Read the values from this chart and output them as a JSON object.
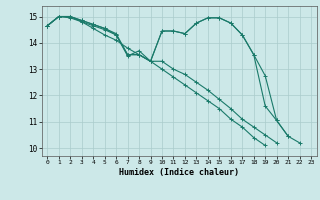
{
  "xlabel": "Humidex (Indice chaleur)",
  "xlim": [
    -0.5,
    23.5
  ],
  "ylim": [
    9.7,
    15.4
  ],
  "yticks": [
    10,
    11,
    12,
    13,
    14,
    15
  ],
  "xticks": [
    0,
    1,
    2,
    3,
    4,
    5,
    6,
    7,
    8,
    9,
    10,
    11,
    12,
    13,
    14,
    15,
    16,
    17,
    18,
    19,
    20,
    21,
    22,
    23
  ],
  "bg_color": "#cce8e8",
  "grid_color_major": "#aacccc",
  "grid_color_minor": "#bbdddd",
  "line_color": "#1a7a6a",
  "lines": [
    [
      14.65,
      15.0,
      15.0,
      14.85,
      14.7,
      14.55,
      14.35,
      13.55,
      13.55,
      13.3,
      14.45,
      14.45,
      14.35,
      14.75,
      14.95,
      14.95,
      14.75,
      14.3,
      13.55,
      11.6,
      11.05,
      10.45,
      10.2,
      null
    ],
    [
      14.65,
      15.0,
      15.0,
      14.85,
      14.7,
      14.55,
      14.3,
      13.5,
      13.7,
      13.3,
      14.45,
      14.45,
      14.35,
      14.75,
      14.95,
      14.95,
      14.75,
      14.3,
      13.55,
      12.75,
      11.05,
      10.45,
      null,
      null
    ],
    [
      14.65,
      15.0,
      15.0,
      14.8,
      14.65,
      14.5,
      14.3,
      13.55,
      13.55,
      13.3,
      13.3,
      13.0,
      12.8,
      12.5,
      12.2,
      11.85,
      11.5,
      11.1,
      10.8,
      10.5,
      10.2,
      null,
      null,
      null
    ],
    [
      14.65,
      15.0,
      14.95,
      14.8,
      14.55,
      14.3,
      14.1,
      13.8,
      13.55,
      13.3,
      13.0,
      12.7,
      12.4,
      12.1,
      11.8,
      11.5,
      11.1,
      10.8,
      10.4,
      10.1,
      null,
      null,
      null,
      null
    ]
  ]
}
